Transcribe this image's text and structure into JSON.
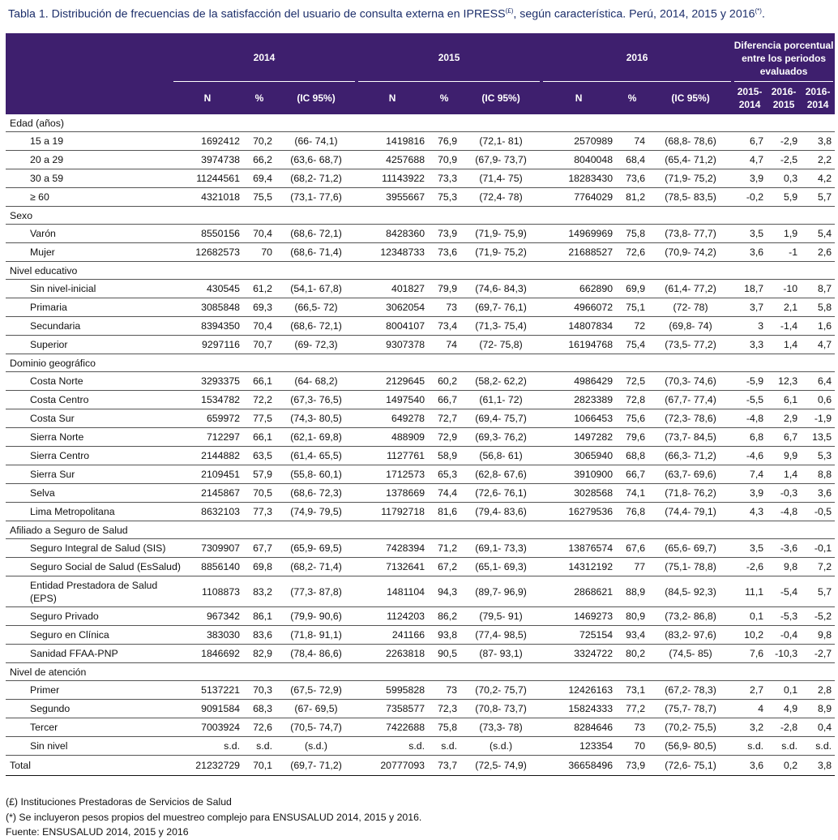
{
  "caption": {
    "label": "Tabla 1.",
    "text": " Distribución de frecuencias de la satisfacción del usuario de consulta externa en IPRESS",
    "sup1": "(£)",
    "text2": ", según característica. Perú, 2014, 2015 y 2016",
    "sup2": "(*)",
    "end": "."
  },
  "header": {
    "years": [
      "2014",
      "2015",
      "2016"
    ],
    "diff_title": "Diferencia porcentual entre los periodos evaluados",
    "cols": [
      "N",
      "%",
      "(IC 95%)"
    ],
    "diff_cols": [
      "2015-2014",
      "2016-2015",
      "2016-2014"
    ]
  },
  "groups": [
    {
      "title": "Edad (años)",
      "rows": [
        {
          "label": "15 a 19",
          "v": [
            "1692412",
            "70,2",
            "(66- 74,1)",
            "1419816",
            "76,9",
            "(72,1- 81)",
            "2570989",
            "74",
            "(68,8- 78,6)",
            "6,7",
            "-2,9",
            "3,8"
          ]
        },
        {
          "label": "20 a 29",
          "v": [
            "3974738",
            "66,2",
            "(63,6- 68,7)",
            "4257688",
            "70,9",
            "(67,9- 73,7)",
            "8040048",
            "68,4",
            "(65,4- 71,2)",
            "4,7",
            "-2,5",
            "2,2"
          ]
        },
        {
          "label": "30 a 59",
          "v": [
            "11244561",
            "69,4",
            "(68,2- 71,2)",
            "11143922",
            "73,3",
            "(71,4- 75)",
            "18283430",
            "73,6",
            "(71,9- 75,2)",
            "3,9",
            "0,3",
            "4,2"
          ]
        },
        {
          "label": "≥ 60",
          "v": [
            "4321018",
            "75,5",
            "(73,1- 77,6)",
            "3955667",
            "75,3",
            "(72,4- 78)",
            "7764029",
            "81,2",
            "(78,5- 83,5)",
            "-0,2",
            "5,9",
            "5,7"
          ]
        }
      ]
    },
    {
      "title": "Sexo",
      "rows": [
        {
          "label": "Varón",
          "v": [
            "8550156",
            "70,4",
            "(68,6- 72,1)",
            "8428360",
            "73,9",
            "(71,9- 75,9)",
            "14969969",
            "75,8",
            "(73,8- 77,7)",
            "3,5",
            "1,9",
            "5,4"
          ]
        },
        {
          "label": "Mujer",
          "v": [
            "12682573",
            "70",
            "(68,6- 71,4)",
            "12348733",
            "73,6",
            "(71,9- 75,2)",
            "21688527",
            "72,6",
            "(70,9- 74,2)",
            "3,6",
            "-1",
            "2,6"
          ]
        }
      ]
    },
    {
      "title": "Nivel educativo",
      "rows": [
        {
          "label": "Sin nivel-inicial",
          "v": [
            "430545",
            "61,2",
            "(54,1- 67,8)",
            "401827",
            "79,9",
            "(74,6- 84,3)",
            "662890",
            "69,9",
            "(61,4- 77,2)",
            "18,7",
            "-10",
            "8,7"
          ]
        },
        {
          "label": "Primaria",
          "v": [
            "3085848",
            "69,3",
            "(66,5- 72)",
            "3062054",
            "73",
            "(69,7- 76,1)",
            "4966072",
            "75,1",
            "(72- 78)",
            "3,7",
            "2,1",
            "5,8"
          ]
        },
        {
          "label": "Secundaria",
          "v": [
            "8394350",
            "70,4",
            "(68,6- 72,1)",
            "8004107",
            "73,4",
            "(71,3- 75,4)",
            "14807834",
            "72",
            "(69,8- 74)",
            "3",
            "-1,4",
            "1,6"
          ]
        },
        {
          "label": "Superior",
          "v": [
            "9297116",
            "70,7",
            "(69- 72,3)",
            "9307378",
            "74",
            "(72- 75,8)",
            "16194768",
            "75,4",
            "(73,5- 77,2)",
            "3,3",
            "1,4",
            "4,7"
          ]
        }
      ]
    },
    {
      "title": "Dominio geográfico",
      "rows": [
        {
          "label": "Costa Norte",
          "v": [
            "3293375",
            "66,1",
            "(64- 68,2)",
            "2129645",
            "60,2",
            "(58,2- 62,2)",
            "4986429",
            "72,5",
            "(70,3- 74,6)",
            "-5,9",
            "12,3",
            "6,4"
          ]
        },
        {
          "label": "Costa Centro",
          "v": [
            "1534782",
            "72,2",
            "(67,3- 76,5)",
            "1497540",
            "66,7",
            "(61,1- 72)",
            "2823389",
            "72,8",
            "(67,7- 77,4)",
            "-5,5",
            "6,1",
            "0,6"
          ]
        },
        {
          "label": "Costa Sur",
          "v": [
            "659972",
            "77,5",
            "(74,3- 80,5)",
            "649278",
            "72,7",
            "(69,4- 75,7)",
            "1066453",
            "75,6",
            "(72,3- 78,6)",
            "-4,8",
            "2,9",
            "-1,9"
          ]
        },
        {
          "label": "Sierra Norte",
          "v": [
            "712297",
            "66,1",
            "(62,1- 69,8)",
            "488909",
            "72,9",
            "(69,3- 76,2)",
            "1497282",
            "79,6",
            "(73,7- 84,5)",
            "6,8",
            "6,7",
            "13,5"
          ]
        },
        {
          "label": "Sierra Centro",
          "v": [
            "2144882",
            "63,5",
            "(61,4- 65,5)",
            "1127761",
            "58,9",
            "(56,8- 61)",
            "3065940",
            "68,8",
            "(66,3- 71,2)",
            "-4,6",
            "9,9",
            "5,3"
          ]
        },
        {
          "label": "Sierra Sur",
          "v": [
            "2109451",
            "57,9",
            "(55,8- 60,1)",
            "1712573",
            "65,3",
            "(62,8- 67,6)",
            "3910900",
            "66,7",
            "(63,7- 69,6)",
            "7,4",
            "1,4",
            "8,8"
          ]
        },
        {
          "label": "Selva",
          "v": [
            "2145867",
            "70,5",
            "(68,6- 72,3)",
            "1378669",
            "74,4",
            "(72,6- 76,1)",
            "3028568",
            "74,1",
            "(71,8- 76,2)",
            "3,9",
            "-0,3",
            "3,6"
          ]
        },
        {
          "label": "Lima Metropolitana",
          "v": [
            "8632103",
            "77,3",
            "(74,9- 79,5)",
            "11792718",
            "81,6",
            "(79,4- 83,6)",
            "16279536",
            "76,8",
            "(74,4- 79,1)",
            "4,3",
            "-4,8",
            "-0,5"
          ]
        }
      ]
    },
    {
      "title": "Afiliado a Seguro de Salud",
      "rows": [
        {
          "label": "Seguro Integral de Salud (SIS)",
          "v": [
            "7309907",
            "67,7",
            "(65,9- 69,5)",
            "7428394",
            "71,2",
            "(69,1- 73,3)",
            "13876574",
            "67,6",
            "(65,6- 69,7)",
            "3,5",
            "-3,6",
            "-0,1"
          ]
        },
        {
          "label": "Seguro Social de Salud (EsSalud)",
          "v": [
            "8856140",
            "69,8",
            "(68,2- 71,4)",
            "7132641",
            "67,2",
            "(65,1- 69,3)",
            "14312192",
            "77",
            "(75,1- 78,8)",
            "-2,6",
            "9,8",
            "7,2"
          ]
        },
        {
          "label": "Entidad Prestadora de Salud (EPS)",
          "tall": true,
          "v": [
            "1108873",
            "83,2",
            "(77,3- 87,8)",
            "1481104",
            "94,3",
            "(89,7- 96,9)",
            "2868621",
            "88,9",
            "(84,5- 92,3)",
            "11,1",
            "-5,4",
            "5,7"
          ]
        },
        {
          "label": "Seguro Privado",
          "v": [
            "967342",
            "86,1",
            "(79,9- 90,6)",
            "1124203",
            "86,2",
            "(79,5- 91)",
            "1469273",
            "80,9",
            "(73,2- 86,8)",
            "0,1",
            "-5,3",
            "-5,2"
          ]
        },
        {
          "label": "Seguro en Clínica",
          "v": [
            "383030",
            "83,6",
            "(71,8- 91,1)",
            "241166",
            "93,8",
            "(77,4- 98,5)",
            "725154",
            "93,4",
            "(83,2- 97,6)",
            "10,2",
            "-0,4",
            "9,8"
          ]
        },
        {
          "label": "Sanidad FFAA-PNP",
          "v": [
            "1846692",
            "82,9",
            "(78,4- 86,6)",
            "2263818",
            "90,5",
            "(87- 93,1)",
            "3324722",
            "80,2",
            "(74,5- 85)",
            "7,6",
            "-10,3",
            "-2,7"
          ]
        }
      ]
    },
    {
      "title": "Nivel de atención",
      "rows": [
        {
          "label": "Primer",
          "v": [
            "5137221",
            "70,3",
            "(67,5- 72,9)",
            "5995828",
            "73",
            "(70,2- 75,7)",
            "12426163",
            "73,1",
            "(67,2- 78,3)",
            "2,7",
            "0,1",
            "2,8"
          ]
        },
        {
          "label": "Segundo",
          "v": [
            "9091584",
            "68,3",
            "(67- 69,5)",
            "7358577",
            "72,3",
            "(70,8- 73,7)",
            "15824333",
            "77,2",
            "(75,7- 78,7)",
            "4",
            "4,9",
            "8,9"
          ]
        },
        {
          "label": "Tercer",
          "v": [
            "7003924",
            "72,6",
            "(70,5- 74,7)",
            "7422688",
            "75,8",
            "(73,3- 78)",
            "8284646",
            "73",
            "(70,2- 75,5)",
            "3,2",
            "-2,8",
            "0,4"
          ]
        },
        {
          "label": "Sin nivel",
          "v": [
            "s.d.",
            "s.d.",
            "(s.d.)",
            "s.d.",
            "s.d.",
            "(s.d.)",
            "123354",
            "70",
            "(56,9- 80,5)",
            "s.d.",
            "s.d.",
            "s.d."
          ]
        }
      ]
    }
  ],
  "total": {
    "label": "Total",
    "v": [
      "21232729",
      "70,1",
      "(69,7- 71,2)",
      "20777093",
      "73,7",
      "(72,5- 74,9)",
      "36658496",
      "73,9",
      "(72,6- 75,1)",
      "3,6",
      "0,2",
      "3,8"
    ]
  },
  "notes": [
    "(£) Instituciones Prestadoras de Servicios de Salud",
    "(*) Se incluyeron pesos propios del muestreo complejo para ENSUSALUD 2014, 2015 y 2016.",
    "Fuente: ENSUSALUD 2014, 2015 y 2016"
  ]
}
